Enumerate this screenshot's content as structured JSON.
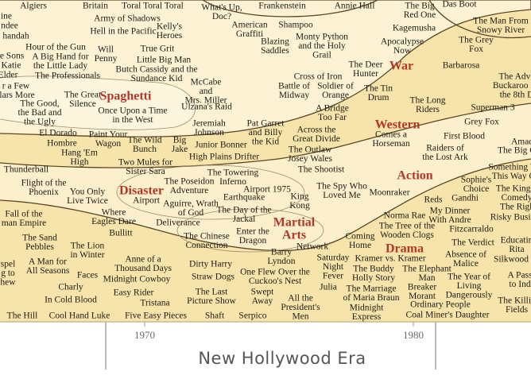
{
  "films": [
    [
      "Algiers"
    ],
    [
      "Britain"
    ],
    [
      "Toral Toral Toral"
    ],
    [
      "What's Up,",
      "Doc?"
    ],
    [
      "Frankenstein"
    ],
    [
      "Annie Hall"
    ],
    [
      "The Big",
      "Red One"
    ],
    [
      "Das Boot"
    ],
    [
      "Army of Shadows"
    ],
    [
      "Kelly's",
      "Heroes"
    ],
    [
      "Hell in the Pacific"
    ],
    [
      "American",
      "Graffiti"
    ],
    [
      "Shampoo"
    ],
    [
      "Kagemusha"
    ],
    [
      "The Man From",
      "Snowy River"
    ],
    [
      "ine"
    ],
    [
      "ndee"
    ],
    [
      "handah"
    ],
    [
      "Hour of the Gun"
    ],
    [
      "Will",
      "Penny"
    ],
    [
      "True Grit"
    ],
    [
      "Blazing",
      "Saddles"
    ],
    [
      "Monty Python",
      "and the Holy",
      "Grail"
    ],
    [
      "Apocalypse",
      "Now"
    ],
    [
      "The Grey",
      "Fox"
    ],
    [
      "e Sons"
    ],
    [
      "A Big Hand for",
      "the Little Lady"
    ],
    [
      "Little Big Man"
    ],
    [
      "Katie"
    ],
    [
      "Elder"
    ],
    [
      "The Professionals"
    ],
    [
      "Butch Cassidy and the",
      "Sundance Kid"
    ],
    [
      "McCabe",
      "and",
      "Mrs. Miller"
    ],
    [
      "Barbarosa"
    ],
    [
      "The Deer",
      "Hunter"
    ],
    [
      "r a Few",
      "llars More"
    ],
    [
      "The Good,",
      "the Bad and",
      "the Ugly"
    ],
    [
      "The Great",
      "Silence"
    ],
    [
      "Once Upon a Time",
      "in the West"
    ],
    [
      "Ulzana's Raid"
    ],
    [
      "Cross of Iron"
    ],
    [
      "Battle of",
      "Midway"
    ],
    [
      "Soldier of",
      "Orange"
    ],
    [
      "The Tin",
      "Drum"
    ],
    [
      "The Long",
      "Riders"
    ],
    [
      "Superman 3"
    ],
    [
      "A Bridge",
      "Too Far"
    ],
    [
      "Grey Fox"
    ],
    [
      "Jeremiah",
      "Johnson"
    ],
    [
      "Pat Garret",
      "and Billy",
      "the Kid"
    ],
    [
      "Across the",
      "Great Divide"
    ],
    [
      "Comes a",
      "Horseman"
    ],
    [
      "First Blood"
    ],
    [
      "El Dorado"
    ],
    [
      "Paint Your",
      "Wagon"
    ],
    [
      "The Wild",
      "Bunch"
    ],
    [
      "Big",
      "Jake"
    ],
    [
      "Junior Bonner"
    ],
    [
      "The Outlaw",
      "Josey Wales"
    ],
    [
      "Raiders of",
      "the Lost Ark"
    ],
    [
      "Hombre"
    ],
    [
      "Hang 'Em",
      "High"
    ],
    [
      "High Plains Drifter"
    ],
    [
      "Two Mules for",
      "Sister Sara"
    ],
    [
      "The Shootist"
    ],
    [
      "Thunderball"
    ],
    [
      "The Towering",
      "Inferno"
    ],
    [
      "Sophie's",
      "Choice"
    ],
    [
      "The Poseidon",
      "Adventure"
    ],
    [
      "Airport 1975"
    ],
    [
      "The Spy Who",
      "Loved Me"
    ],
    [
      "Moonraker"
    ],
    [
      "Flight of the",
      "Phoenix"
    ],
    [
      "You Only",
      "Live Twice"
    ],
    [
      "Airport"
    ],
    [
      "Earthquake"
    ],
    [
      "King",
      "Kong"
    ],
    [
      "Gandhi"
    ],
    [
      "Reds"
    ],
    [
      "Aguirre, Wrath",
      "of God"
    ],
    [
      "Deliverance"
    ],
    [
      "The Day of the",
      "Jackal"
    ],
    [
      "Where",
      "Eagles Dare"
    ],
    [
      "My Dinner",
      "With Andre"
    ],
    [
      "Norma Rae"
    ],
    [
      "The Tree of the",
      "Wooden Clogs"
    ],
    [
      "Fall of the",
      "man Empire"
    ],
    [
      "Fitzcarraldo"
    ],
    [
      "Bullitt"
    ],
    [
      "The Chinese",
      "Connection"
    ],
    [
      "Enter the",
      "Dragon"
    ],
    [
      "Coming",
      "Home"
    ],
    [
      "The Sand",
      "Pebbles"
    ],
    [
      "The Lion",
      "in Winter"
    ],
    [
      "Network"
    ],
    [
      "The Verdict"
    ],
    [
      "Absence of",
      "Malice"
    ],
    [
      "Barry",
      "Lyndon"
    ],
    [
      "Saturday",
      "Night",
      "Fever"
    ],
    [
      "Kramer vs. Kramer"
    ],
    [
      "A Man for",
      "All Seasons"
    ],
    [
      "Anne of a",
      "Thousand Days"
    ],
    [
      "Dirty Harry"
    ],
    [
      "The Buddy",
      "Holly Story"
    ],
    [
      "The Elephant",
      "Man"
    ],
    [
      "The Year of",
      "Living",
      "Dangerously"
    ],
    [
      "spel",
      "g to",
      "hew"
    ],
    [
      "Faces"
    ],
    [
      "Midnight Cowboy"
    ],
    [
      "Straw Dogs"
    ],
    [
      "One Flew Over the",
      "Cuckoo's Nest"
    ],
    [
      "Charly"
    ],
    [
      "Easy Rider"
    ],
    [
      "The Last",
      "Picture Show"
    ],
    [
      "Swept",
      "Away"
    ],
    [
      "Julia"
    ],
    [
      "The Marriage",
      "of Maria Braun"
    ],
    [
      "Breaker",
      "Morant"
    ],
    [
      "In Cold Blood"
    ],
    [
      "Tristana"
    ],
    [
      "All the",
      "President's",
      "Men"
    ],
    [
      "Midnight",
      "Express"
    ],
    [
      "Ordinary People"
    ],
    [
      "The Hill"
    ],
    [
      "Cool Hand Luke"
    ],
    [
      "Five Easy Pieces"
    ],
    [
      "Shaft"
    ],
    [
      "Serpico"
    ],
    [
      "Coal Miner's Daughter"
    ],
    [
      "The Adve",
      "Buckaroo Ba",
      "the 8th D"
    ],
    [
      "Amad"
    ],
    [
      "The Big C"
    ],
    [
      "Something W",
      "This Way C"
    ],
    [
      "The King o",
      "Comedy"
    ],
    [
      "The Right"
    ],
    [
      "Risky Busin"
    ],
    [
      "Educatin",
      "Rita"
    ],
    [
      "Silkwood"
    ],
    [
      "A Pass",
      "to Ind"
    ],
    [
      "The Killin",
      "Fields"
    ]
  ],
  "genres": [
    [
      "Spaghetti"
    ],
    [
      "War"
    ],
    [
      "Western"
    ],
    [
      "Action"
    ],
    [
      "Disaster"
    ],
    [
      "Martial",
      "Arts"
    ],
    [
      "Drama"
    ]
  ],
  "axis": {
    "ticks": [
      "1970",
      "1980"
    ],
    "label": "New Hollywood Era"
  }
}
